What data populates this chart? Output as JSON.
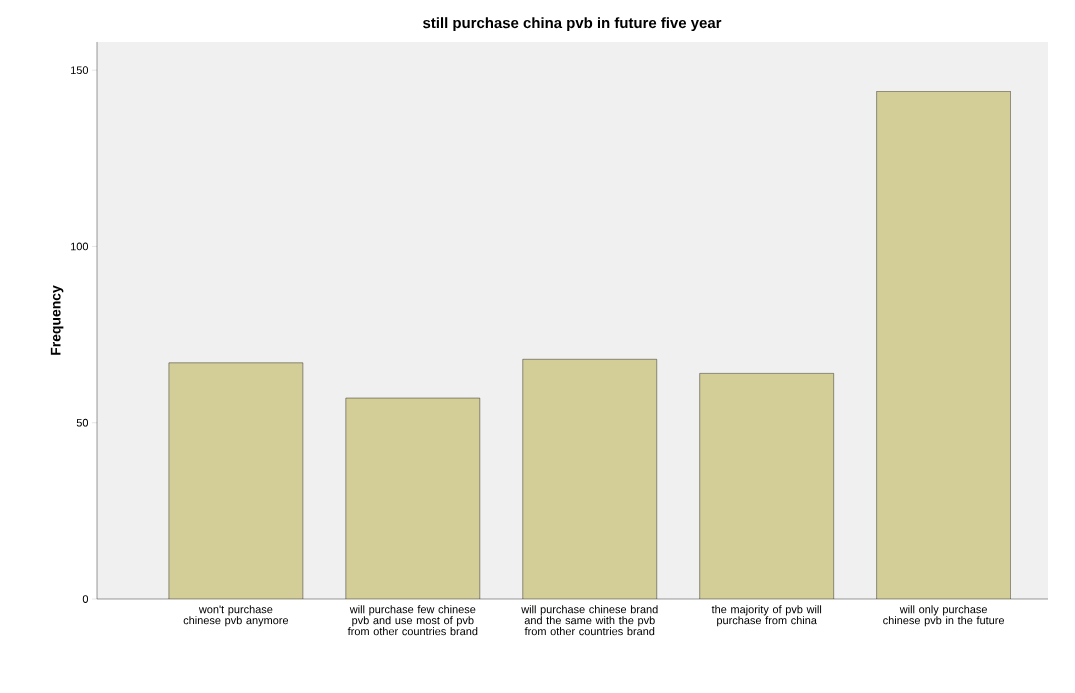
{
  "chart_data": {
    "type": "bar",
    "title": "still purchase china pvb in future five year",
    "ylabel": "Frequency",
    "categories": [
      "won't purchase chinese pvb anymore",
      "will purchase few chinese pvb and use most of pvb from other countries brand",
      "will purchase chinese brand and the same with the pvb from other countries brand",
      "the majority of pvb will purchase from china",
      "will only purchase chinese pvb in the future"
    ],
    "values": [
      67,
      57,
      68,
      64,
      144
    ],
    "color": "#d3ce97",
    "ylim": [
      0,
      158
    ],
    "yticks": [
      0,
      50,
      100,
      150
    ],
    "grid": false
  }
}
